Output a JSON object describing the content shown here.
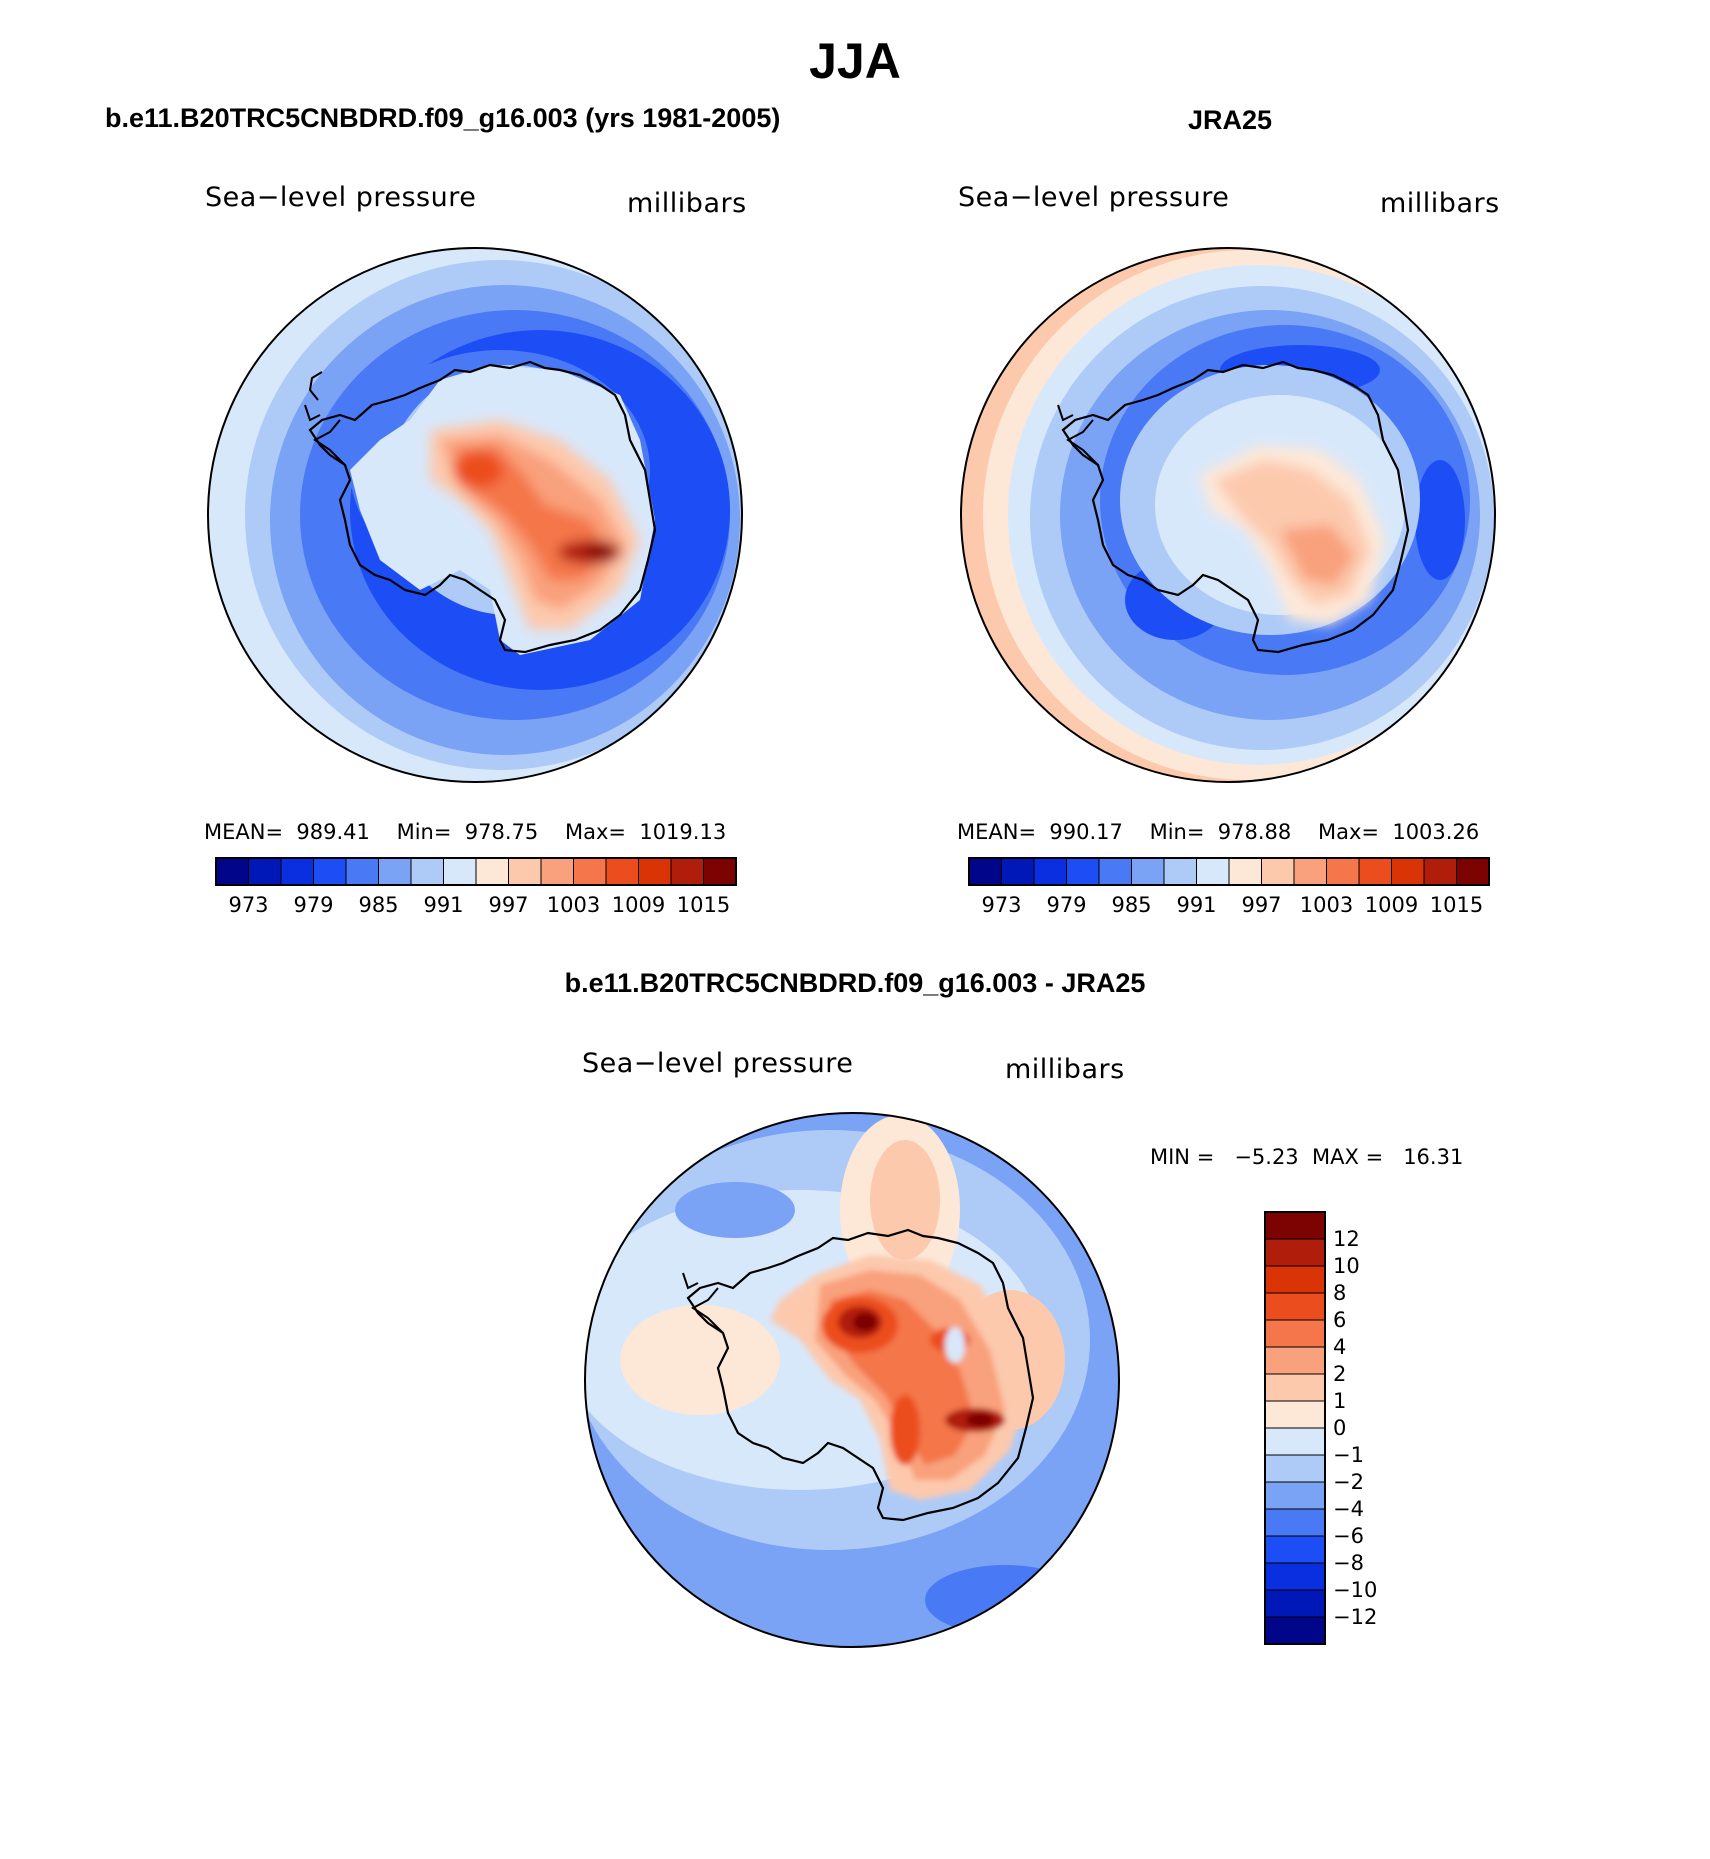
{
  "title": "JJA",
  "panels": {
    "model": {
      "heading": "b.e11.B20TRC5CNBDRD.f09_g16.003 (yrs 1981-2005)",
      "variable": "Sea−level pressure",
      "units": "millibars",
      "stats": "MEAN=  989.41    Min=  978.75    Max=  1019.13"
    },
    "obs": {
      "heading": "JRA25",
      "variable": "Sea−level pressure",
      "units": "millibars",
      "stats": "MEAN=  990.17    Min=  978.88    Max=  1003.26"
    },
    "diff": {
      "heading": "b.e11.B20TRC5CNBDRD.f09_g16.003 - JRA25",
      "variable": "Sea−level pressure",
      "units": "millibars",
      "stats": "MIN =   −5.23  MAX =   16.31"
    }
  },
  "colorbars": {
    "abs": {
      "colors": [
        "#00058a",
        "#0018b8",
        "#0a2fe0",
        "#1d4ef5",
        "#4a79f5",
        "#7aa2f5",
        "#aecbf8",
        "#d8e8fb",
        "#fde8d8",
        "#fcc9ad",
        "#f9a07c",
        "#f4764a",
        "#ec4d1e",
        "#da3305",
        "#b01d0a",
        "#7d0303"
      ],
      "tick_labels": [
        "973",
        "979",
        "985",
        "991",
        "997",
        "1003",
        "1009",
        "1015"
      ]
    },
    "diff": {
      "colors": [
        "#7d0303",
        "#b01d0a",
        "#da3305",
        "#ec4d1e",
        "#f4764a",
        "#f9a07c",
        "#fcc9ad",
        "#fde8d8",
        "#d8e8fb",
        "#aecbf8",
        "#7aa2f5",
        "#4a79f5",
        "#1d4ef5",
        "#0a2fe0",
        "#0018b8",
        "#00058a"
      ],
      "tick_labels": [
        "12",
        "10",
        "8",
        "6",
        "4",
        "2",
        "1",
        "0",
        "−1",
        "−2",
        "−4",
        "−6",
        "−8",
        "−10",
        "−12"
      ]
    }
  },
  "map_colors": {
    "ocean_deep": "#1d4ef5",
    "ocean_mid": "#4a79f5",
    "ocean_light": "#7aa2f5",
    "ocean_pale": "#aecbf8",
    "neutral_cool": "#d8e8fb",
    "neutral_warm": "#fde8d8",
    "warm_1": "#fcc9ad",
    "warm_2": "#f9a07c",
    "warm_3": "#f4764a",
    "warm_4": "#ec4d1e",
    "warm_5": "#b01d0a",
    "warm_6": "#7d0303"
  }
}
